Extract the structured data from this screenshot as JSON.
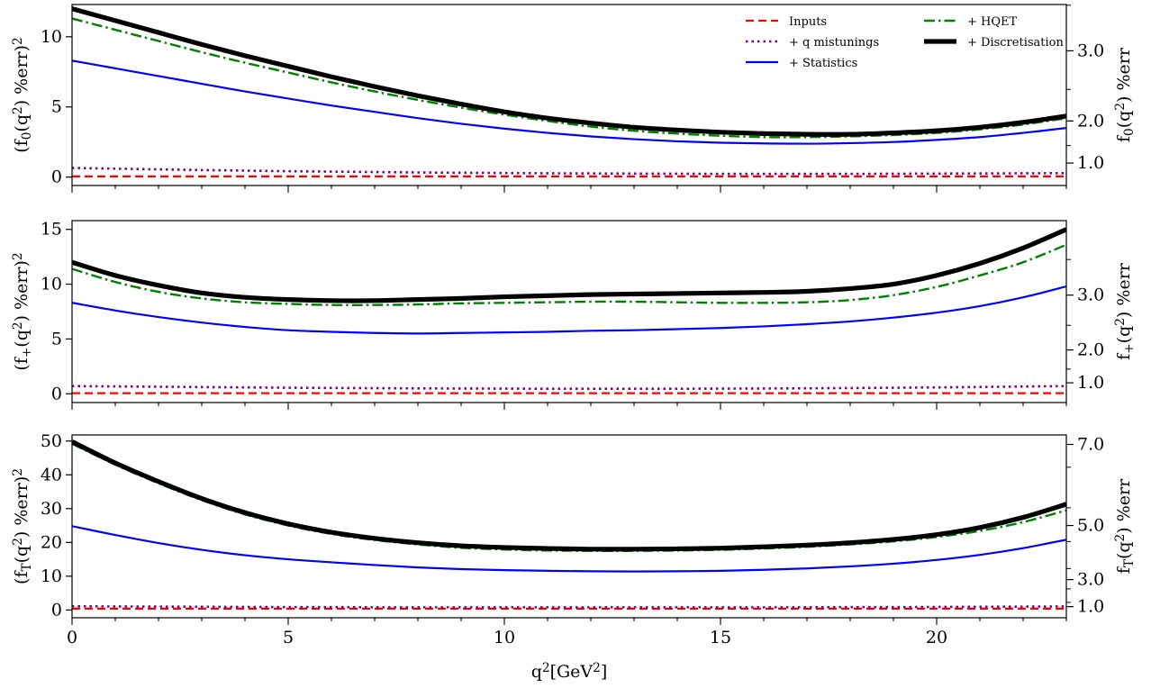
{
  "chart_data": {
    "type": "line",
    "x": [
      0,
      1,
      2,
      3,
      4,
      5,
      6,
      7,
      8,
      9,
      10,
      11,
      12,
      13,
      14,
      15,
      16,
      17,
      18,
      19,
      20,
      21,
      22,
      23
    ],
    "xlabel": "q^2[GeV^2]",
    "xlim": [
      0,
      23
    ],
    "x_ticks": [
      0,
      5,
      10,
      15,
      20
    ],
    "x_tick_labels": [
      "0",
      "5",
      "10",
      "15",
      "20"
    ],
    "legend": {
      "placement": "top-right",
      "entries": [
        "Inputs",
        "+ q mistunings",
        "+ Statistics",
        "+ HQET",
        "+ Discretisation"
      ]
    },
    "colors": {
      "Inputs": "#ff0000",
      "+ q mistunings": "#800080",
      "+ Statistics": "#0000ff",
      "+ HQET": "#008000",
      "+ Discretisation": "#000000"
    },
    "panels": [
      {
        "ylabel": "(f_0(q^2) %err)^2",
        "right_ylabel": "f_0(q^2) %err",
        "ylim": [
          -0.6,
          12.3
        ],
        "y_ticks": [
          0,
          5,
          10
        ],
        "y_tick_labels": [
          "0",
          "5",
          "10"
        ],
        "right_ticks": [
          "1.0",
          "2.0",
          "3.0"
        ],
        "series": [
          {
            "name": "Inputs",
            "values": [
              0.05,
              0.05,
              0.05,
              0.05,
              0.05,
              0.05,
              0.05,
              0.05,
              0.05,
              0.05,
              0.05,
              0.05,
              0.05,
              0.05,
              0.05,
              0.05,
              0.05,
              0.05,
              0.05,
              0.05,
              0.05,
              0.05,
              0.05,
              0.05
            ]
          },
          {
            "name": "+ q mistunings",
            "values": [
              0.65,
              0.6,
              0.55,
              0.5,
              0.46,
              0.42,
              0.39,
              0.36,
              0.33,
              0.31,
              0.29,
              0.27,
              0.26,
              0.25,
              0.24,
              0.23,
              0.23,
              0.23,
              0.23,
              0.24,
              0.25,
              0.26,
              0.27,
              0.28
            ]
          },
          {
            "name": "+ Statistics",
            "values": [
              8.3,
              7.75,
              7.2,
              6.65,
              6.1,
              5.6,
              5.1,
              4.65,
              4.2,
              3.8,
              3.45,
              3.15,
              2.9,
              2.7,
              2.55,
              2.45,
              2.4,
              2.38,
              2.42,
              2.5,
              2.65,
              2.85,
              3.15,
              3.5
            ]
          },
          {
            "name": "+ HQET",
            "values": [
              11.3,
              10.5,
              9.7,
              8.9,
              8.15,
              7.45,
              6.75,
              6.1,
              5.5,
              4.95,
              4.45,
              4.0,
              3.6,
              3.3,
              3.1,
              2.95,
              2.85,
              2.85,
              2.9,
              3.0,
              3.15,
              3.4,
              3.75,
              4.2
            ]
          },
          {
            "name": "+ Discretisation",
            "values": [
              12.0,
              11.15,
              10.3,
              9.45,
              8.65,
              7.9,
              7.15,
              6.45,
              5.8,
              5.2,
              4.65,
              4.2,
              3.85,
              3.55,
              3.35,
              3.2,
              3.1,
              3.05,
              3.05,
              3.15,
              3.3,
              3.55,
              3.9,
              4.35
            ]
          }
        ]
      },
      {
        "ylabel": "(f_+(q^2) %err)^2",
        "right_ylabel": "f_+(q^2) %err",
        "ylim": [
          -0.8,
          15.8
        ],
        "y_ticks": [
          0,
          5,
          10,
          15
        ],
        "y_tick_labels": [
          "0",
          "5",
          "10",
          "15"
        ],
        "right_ticks": [
          "1.0",
          "2.0",
          "3.0"
        ],
        "series": [
          {
            "name": "Inputs",
            "values": [
              0.05,
              0.05,
              0.05,
              0.05,
              0.05,
              0.05,
              0.05,
              0.05,
              0.05,
              0.05,
              0.05,
              0.05,
              0.05,
              0.05,
              0.05,
              0.05,
              0.05,
              0.05,
              0.05,
              0.05,
              0.05,
              0.05,
              0.05,
              0.05
            ]
          },
          {
            "name": "+ q mistunings",
            "values": [
              0.7,
              0.67,
              0.64,
              0.61,
              0.58,
              0.55,
              0.53,
              0.51,
              0.49,
              0.48,
              0.47,
              0.46,
              0.46,
              0.46,
              0.46,
              0.47,
              0.48,
              0.5,
              0.52,
              0.55,
              0.58,
              0.62,
              0.66,
              0.7
            ]
          },
          {
            "name": "+ Statistics",
            "values": [
              8.3,
              7.6,
              7.0,
              6.5,
              6.1,
              5.8,
              5.65,
              5.55,
              5.5,
              5.55,
              5.6,
              5.65,
              5.75,
              5.8,
              5.9,
              6.0,
              6.15,
              6.35,
              6.6,
              6.95,
              7.4,
              8.0,
              8.8,
              9.8
            ]
          },
          {
            "name": "+ HQET",
            "values": [
              11.4,
              10.2,
              9.3,
              8.7,
              8.35,
              8.2,
              8.1,
              8.1,
              8.15,
              8.25,
              8.3,
              8.35,
              8.4,
              8.4,
              8.35,
              8.3,
              8.3,
              8.35,
              8.55,
              9.0,
              9.75,
              10.8,
              12.0,
              13.6
            ]
          },
          {
            "name": "+ Discretisation",
            "values": [
              12.0,
              10.8,
              9.9,
              9.2,
              8.8,
              8.6,
              8.5,
              8.5,
              8.6,
              8.7,
              8.85,
              8.95,
              9.05,
              9.1,
              9.15,
              9.2,
              9.25,
              9.35,
              9.6,
              10.0,
              10.8,
              11.9,
              13.3,
              15.0
            ]
          }
        ]
      },
      {
        "ylabel": "(f_T(q^2) %err)^2",
        "right_ylabel": "f_T(q^2) %err",
        "ylim": [
          -2.3,
          51.8
        ],
        "y_ticks": [
          0,
          10,
          20,
          30,
          40,
          50
        ],
        "y_tick_labels": [
          "0",
          "10",
          "20",
          "30",
          "40",
          "50"
        ],
        "right_ticks": [
          "1.0",
          "3.0",
          "5.0",
          "7.0"
        ],
        "series": [
          {
            "name": "Inputs",
            "values": [
              0.4,
              0.4,
              0.4,
              0.4,
              0.4,
              0.4,
              0.4,
              0.4,
              0.4,
              0.4,
              0.4,
              0.4,
              0.4,
              0.4,
              0.4,
              0.4,
              0.4,
              0.4,
              0.4,
              0.4,
              0.4,
              0.4,
              0.4,
              0.4
            ]
          },
          {
            "name": "+ q mistunings",
            "values": [
              1.1,
              1.05,
              1.0,
              0.95,
              0.9,
              0.85,
              0.85,
              0.8,
              0.8,
              0.8,
              0.8,
              0.8,
              0.8,
              0.8,
              0.8,
              0.8,
              0.8,
              0.8,
              0.85,
              0.85,
              0.9,
              0.95,
              1.0,
              1.05
            ]
          },
          {
            "name": "+ Statistics",
            "values": [
              24.8,
              22.2,
              19.8,
              17.8,
              16.2,
              15.0,
              14.1,
              13.3,
              12.6,
              12.1,
              11.8,
              11.6,
              11.45,
              11.4,
              11.45,
              11.6,
              11.9,
              12.3,
              12.9,
              13.7,
              14.8,
              16.3,
              18.3,
              20.8
            ]
          },
          {
            "name": "+ HQET",
            "values": [
              49.2,
              43.0,
              37.5,
              32.5,
              28.3,
              25.0,
              22.5,
              20.7,
              19.4,
              18.4,
              17.9,
              17.6,
              17.5,
              17.5,
              17.6,
              17.8,
              18.2,
              18.7,
              19.4,
              20.3,
              21.6,
              23.4,
              26.0,
              29.5
            ]
          },
          {
            "name": "+ Discretisation",
            "values": [
              49.8,
              43.5,
              38.0,
              33.0,
              28.8,
              25.5,
              23.0,
              21.2,
              19.9,
              19.0,
              18.5,
              18.2,
              18.0,
              18.0,
              18.1,
              18.3,
              18.7,
              19.2,
              19.9,
              20.9,
              22.3,
              24.4,
              27.4,
              31.3
            ]
          }
        ]
      }
    ]
  }
}
